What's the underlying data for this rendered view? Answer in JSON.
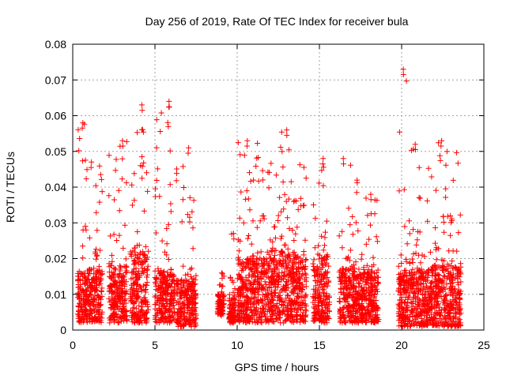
{
  "chart_data": {
    "type": "scatter",
    "title": "Day 256 of 2019, Rate Of TEC Index for receiver bula",
    "xlabel": "GPS time / hours",
    "ylabel": "ROTI / TECUs",
    "xlim": [
      0,
      25
    ],
    "ylim": [
      0,
      0.08
    ],
    "xticks": [
      "0",
      "5",
      "10",
      "15",
      "20",
      "25"
    ],
    "yticks": [
      "0",
      "0.01",
      "0.02",
      "0.03",
      "0.04",
      "0.05",
      "0.06",
      "0.07",
      "0.08"
    ],
    "grid": true,
    "marker": "+",
    "color": "#ff0000",
    "segments": [
      {
        "x_range": [
          0.3,
          0.8
        ],
        "typical": [
          0.002,
          0.016
        ],
        "upper": 0.058
      },
      {
        "x_range": [
          0.8,
          1.8
        ],
        "typical": [
          0.002,
          0.017
        ],
        "upper": 0.047
      },
      {
        "x_range": [
          2.2,
          3.3
        ],
        "typical": [
          0.002,
          0.018
        ],
        "upper": 0.053
      },
      {
        "x_range": [
          3.5,
          4.6
        ],
        "typical": [
          0.002,
          0.022
        ],
        "upper": 0.063
      },
      {
        "x_range": [
          5.0,
          6.2
        ],
        "typical": [
          0.002,
          0.017
        ],
        "upper": 0.064
      },
      {
        "x_range": [
          6.3,
          7.5
        ],
        "typical": [
          0.001,
          0.014
        ],
        "upper": 0.051
      },
      {
        "x_range": [
          8.8,
          9.2
        ],
        "typical": [
          0.004,
          0.01
        ],
        "upper": 0.016
      },
      {
        "x_range": [
          9.5,
          9.9
        ],
        "typical": [
          0.002,
          0.009
        ],
        "upper": 0.027
      },
      {
        "x_range": [
          10.0,
          11.8
        ],
        "typical": [
          0.002,
          0.02
        ],
        "upper": 0.053
      },
      {
        "x_range": [
          11.8,
          14.2
        ],
        "typical": [
          0.002,
          0.022
        ],
        "upper": 0.056
      },
      {
        "x_range": [
          14.6,
          15.6
        ],
        "typical": [
          0.002,
          0.02
        ],
        "upper": 0.048
      },
      {
        "x_range": [
          16.2,
          17.3
        ],
        "typical": [
          0.002,
          0.017
        ],
        "upper": 0.048
      },
      {
        "x_range": [
          17.3,
          18.6
        ],
        "typical": [
          0.002,
          0.016
        ],
        "upper": 0.038
      },
      {
        "x_range": [
          19.8,
          20.6
        ],
        "typical": [
          0.001,
          0.016
        ],
        "upper": 0.073
      },
      {
        "x_range": [
          20.6,
          21.6
        ],
        "typical": [
          0.001,
          0.017
        ],
        "upper": 0.052
      },
      {
        "x_range": [
          21.6,
          23.6
        ],
        "typical": [
          0.001,
          0.018
        ],
        "upper": 0.053
      }
    ]
  }
}
